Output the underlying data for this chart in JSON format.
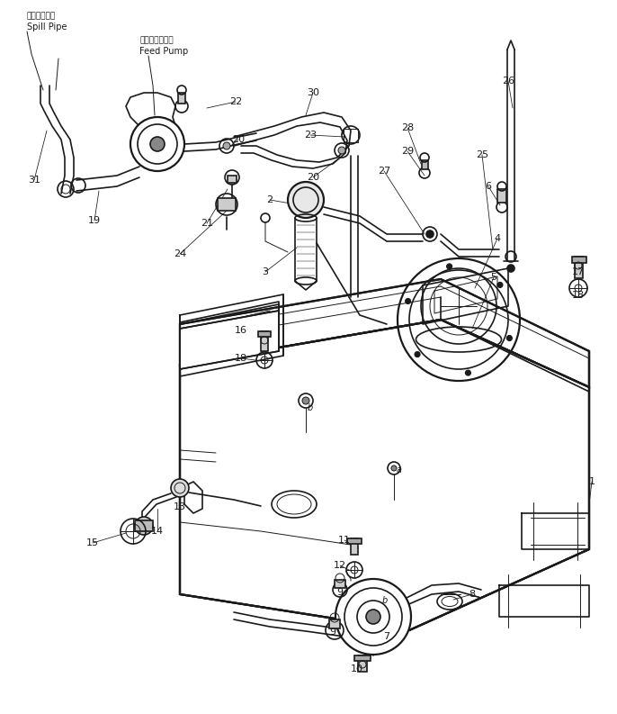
{
  "bg_color": "#ffffff",
  "line_color": "#1a1a1a",
  "figsize": [
    6.86,
    7.93
  ],
  "dpi": 100,
  "text": {
    "spill_pipe_jp": "スピルパイプ",
    "spill_pipe_en": "Spill Pipe",
    "feed_pump_jp": "フィードポンプ",
    "feed_pump_en": "Feed Pump"
  }
}
